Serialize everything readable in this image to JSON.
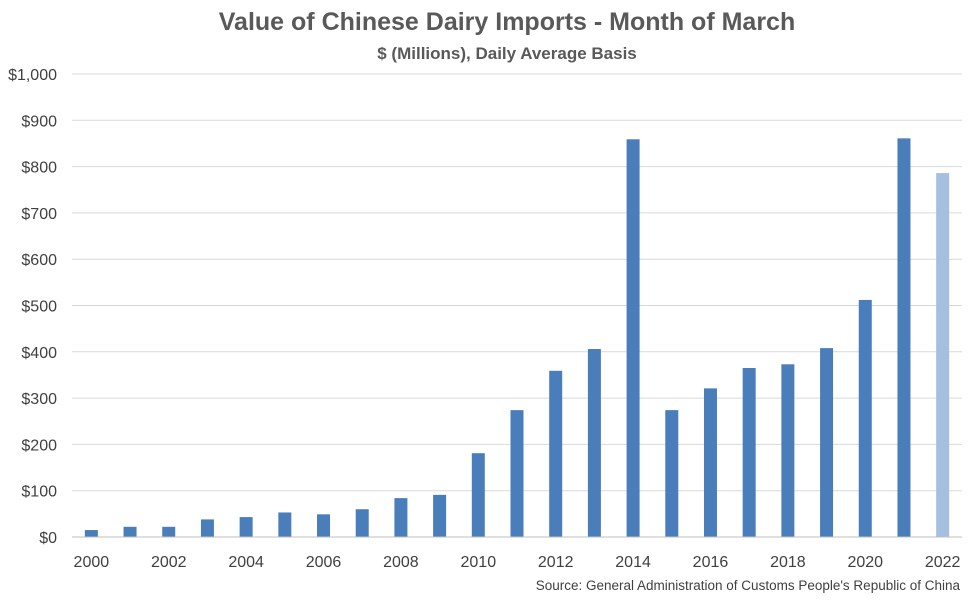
{
  "chart_data": {
    "type": "bar",
    "title": "Value of Chinese Dairy Imports - Month of March",
    "subtitle": "$ (Millions), Daily Average Basis",
    "xlabel": "",
    "ylabel": "",
    "ylim": [
      0,
      1000
    ],
    "y_ticks": [
      0,
      100,
      200,
      300,
      400,
      500,
      600,
      700,
      800,
      900,
      1000
    ],
    "y_tick_labels": [
      "$0",
      "$100",
      "$200",
      "$300",
      "$400",
      "$500",
      "$600",
      "$700",
      "$800",
      "$900",
      "$1,000"
    ],
    "categories": [
      "2000",
      "2001",
      "2002",
      "2003",
      "2004",
      "2005",
      "2006",
      "2007",
      "2008",
      "2009",
      "2010",
      "2011",
      "2012",
      "2013",
      "2014",
      "2015",
      "2016",
      "2017",
      "2018",
      "2019",
      "2020",
      "2021",
      "2022"
    ],
    "x_tick_labels": [
      "2000",
      "2002",
      "2004",
      "2006",
      "2008",
      "2010",
      "2012",
      "2014",
      "2016",
      "2018",
      "2020",
      "2022"
    ],
    "values": [
      15,
      22,
      22,
      38,
      43,
      53,
      49,
      60,
      84,
      91,
      181,
      274,
      359,
      406,
      859,
      274,
      321,
      365,
      373,
      408,
      512,
      861,
      786
    ],
    "grid": true,
    "source": "Source: General Administration of Customs People's Republic of China"
  },
  "colors": {
    "bar": "#4a7ebb",
    "bar_highlight": "#a4bfdf",
    "gridline": "#d9d9d9",
    "text": "#595959"
  },
  "highlight_categories": [
    "2022"
  ]
}
